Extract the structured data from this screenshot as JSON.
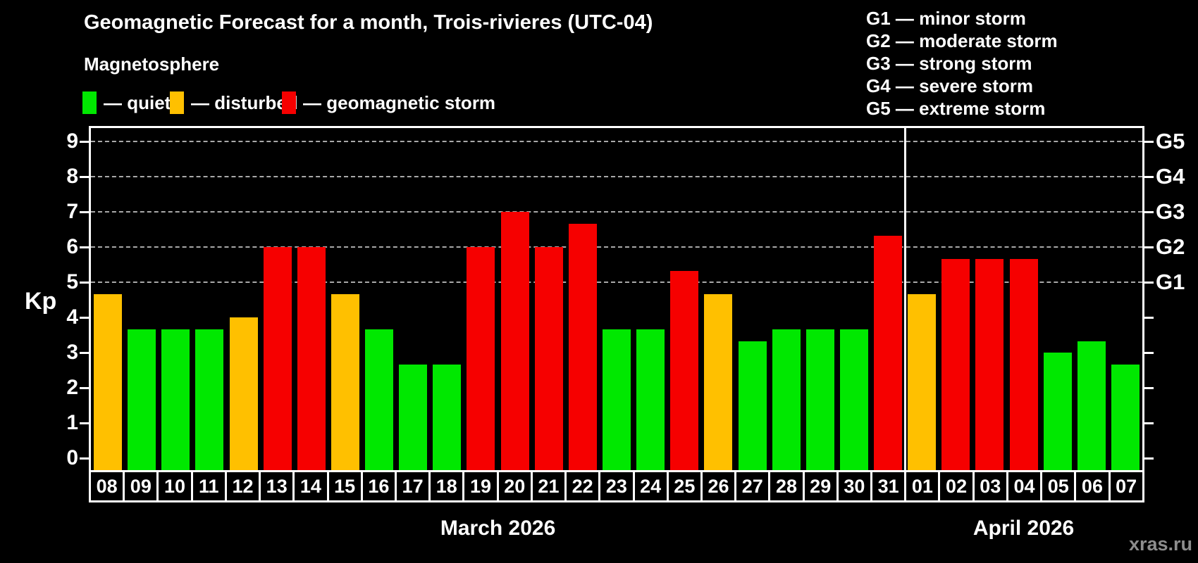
{
  "title": "Geomagnetic Forecast for a month, Trois-rivieres (UTC-04)",
  "subtitle": "Magnetosphere",
  "legend": [
    {
      "name": "quiet",
      "label": "— quiet",
      "color": "#00e800"
    },
    {
      "name": "disturbed",
      "label": "— disturbed",
      "color": "#ffc000"
    },
    {
      "name": "storm",
      "label": "— geomagnetic storm",
      "color": "#f60000"
    }
  ],
  "storm_scale_legend": [
    "G1 — minor storm",
    "G2 — moderate storm",
    "G3 — strong storm",
    "G4 — severe storm",
    "G5 — extreme storm"
  ],
  "watermark": "xras.ru",
  "chart_data": {
    "type": "bar",
    "title": "Geomagnetic Forecast for a month, Trois-rivieres (UTC-04)",
    "ylabel": "Kp",
    "ylim": [
      0,
      9
    ],
    "y_ticks": [
      0,
      1,
      2,
      3,
      4,
      5,
      6,
      7,
      8,
      9
    ],
    "grid": "dashed horizontal gridlines only at Kp 5..9 (G1..G5 storm levels)",
    "right_axis_labels": [
      {
        "label": "G1",
        "kp": 5
      },
      {
        "label": "G2",
        "kp": 6
      },
      {
        "label": "G3",
        "kp": 7
      },
      {
        "label": "G4",
        "kp": 8
      },
      {
        "label": "G5",
        "kp": 9
      }
    ],
    "status_colors": {
      "quiet": "#00e800",
      "disturbed": "#ffc000",
      "storm": "#f60000"
    },
    "months": [
      {
        "label": "March 2026",
        "bar_count": 24
      },
      {
        "label": "April 2026",
        "bar_count": 7
      }
    ],
    "bars": [
      {
        "day": "08",
        "month": "March 2026",
        "value": 4.67,
        "status": "disturbed"
      },
      {
        "day": "09",
        "month": "March 2026",
        "value": 3.67,
        "status": "quiet"
      },
      {
        "day": "10",
        "month": "March 2026",
        "value": 3.67,
        "status": "quiet"
      },
      {
        "day": "11",
        "month": "March 2026",
        "value": 3.67,
        "status": "quiet"
      },
      {
        "day": "12",
        "month": "March 2026",
        "value": 4.0,
        "status": "disturbed"
      },
      {
        "day": "13",
        "month": "March 2026",
        "value": 6.0,
        "status": "storm"
      },
      {
        "day": "14",
        "month": "March 2026",
        "value": 6.0,
        "status": "storm"
      },
      {
        "day": "15",
        "month": "March 2026",
        "value": 4.67,
        "status": "disturbed"
      },
      {
        "day": "16",
        "month": "March 2026",
        "value": 3.67,
        "status": "quiet"
      },
      {
        "day": "17",
        "month": "March 2026",
        "value": 2.67,
        "status": "quiet"
      },
      {
        "day": "18",
        "month": "March 2026",
        "value": 2.67,
        "status": "quiet"
      },
      {
        "day": "19",
        "month": "March 2026",
        "value": 6.0,
        "status": "storm"
      },
      {
        "day": "20",
        "month": "March 2026",
        "value": 7.0,
        "status": "storm"
      },
      {
        "day": "21",
        "month": "March 2026",
        "value": 6.0,
        "status": "storm"
      },
      {
        "day": "22",
        "month": "March 2026",
        "value": 6.67,
        "status": "storm"
      },
      {
        "day": "23",
        "month": "March 2026",
        "value": 3.67,
        "status": "quiet"
      },
      {
        "day": "24",
        "month": "March 2026",
        "value": 3.67,
        "status": "quiet"
      },
      {
        "day": "25",
        "month": "March 2026",
        "value": 5.33,
        "status": "storm"
      },
      {
        "day": "26",
        "month": "March 2026",
        "value": 4.67,
        "status": "disturbed"
      },
      {
        "day": "27",
        "month": "March 2026",
        "value": 3.33,
        "status": "quiet"
      },
      {
        "day": "28",
        "month": "March 2026",
        "value": 3.67,
        "status": "quiet"
      },
      {
        "day": "29",
        "month": "March 2026",
        "value": 3.67,
        "status": "quiet"
      },
      {
        "day": "30",
        "month": "March 2026",
        "value": 3.67,
        "status": "quiet"
      },
      {
        "day": "31",
        "month": "March 2026",
        "value": 6.33,
        "status": "storm"
      },
      {
        "day": "01",
        "month": "April 2026",
        "value": 4.67,
        "status": "disturbed"
      },
      {
        "day": "02",
        "month": "April 2026",
        "value": 5.67,
        "status": "storm"
      },
      {
        "day": "03",
        "month": "April 2026",
        "value": 5.67,
        "status": "storm"
      },
      {
        "day": "04",
        "month": "April 2026",
        "value": 5.67,
        "status": "storm"
      },
      {
        "day": "05",
        "month": "April 2026",
        "value": 3.0,
        "status": "quiet"
      },
      {
        "day": "06",
        "month": "April 2026",
        "value": 3.33,
        "status": "quiet"
      },
      {
        "day": "07",
        "month": "April 2026",
        "value": 2.67,
        "status": "quiet"
      }
    ]
  }
}
